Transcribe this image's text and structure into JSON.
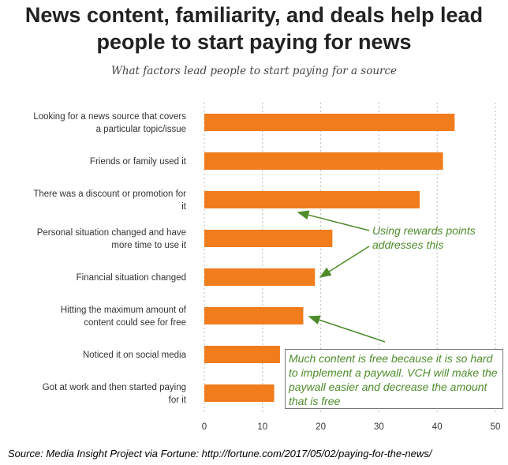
{
  "chart_data": {
    "type": "bar",
    "orientation": "horizontal",
    "title_lines": [
      "News content, familiarity, and deals help lead",
      "people to start paying for news"
    ],
    "subtitle": "What factors lead people to start paying for a source",
    "categories": [
      [
        "Looking for a news source that covers",
        "a particular topic/issue"
      ],
      [
        "Friends or family used it"
      ],
      [
        "There was a discount or promotion for",
        "it"
      ],
      [
        "Personal situation changed and have",
        "more time to use it"
      ],
      [
        "Financial situation changed"
      ],
      [
        "Hitting the maximum amount of",
        "content could see for free"
      ],
      [
        "Noticed it on social media"
      ],
      [
        "Got at work and then started paying",
        "for it"
      ]
    ],
    "values": [
      43,
      41,
      37,
      22,
      19,
      17,
      13,
      12
    ],
    "xlim": [
      0,
      50
    ],
    "xticks": [
      "0",
      "10",
      "20",
      "30",
      "40",
      "50"
    ],
    "grid": true,
    "bar_color": "#f07c1c"
  },
  "annotations": {
    "rewards": [
      "Using rewards points",
      "addresses this"
    ],
    "paywall": [
      "Much content is free because it is so hard",
      "to implement a paywall. VCH will make the",
      "paywall easier and decrease the amount",
      "that is free"
    ],
    "color": "#4e8c2a"
  },
  "source": "Source: Media Insight Project via Fortune: http://fortune.com/2017/05/02/paying-for-the-news/"
}
